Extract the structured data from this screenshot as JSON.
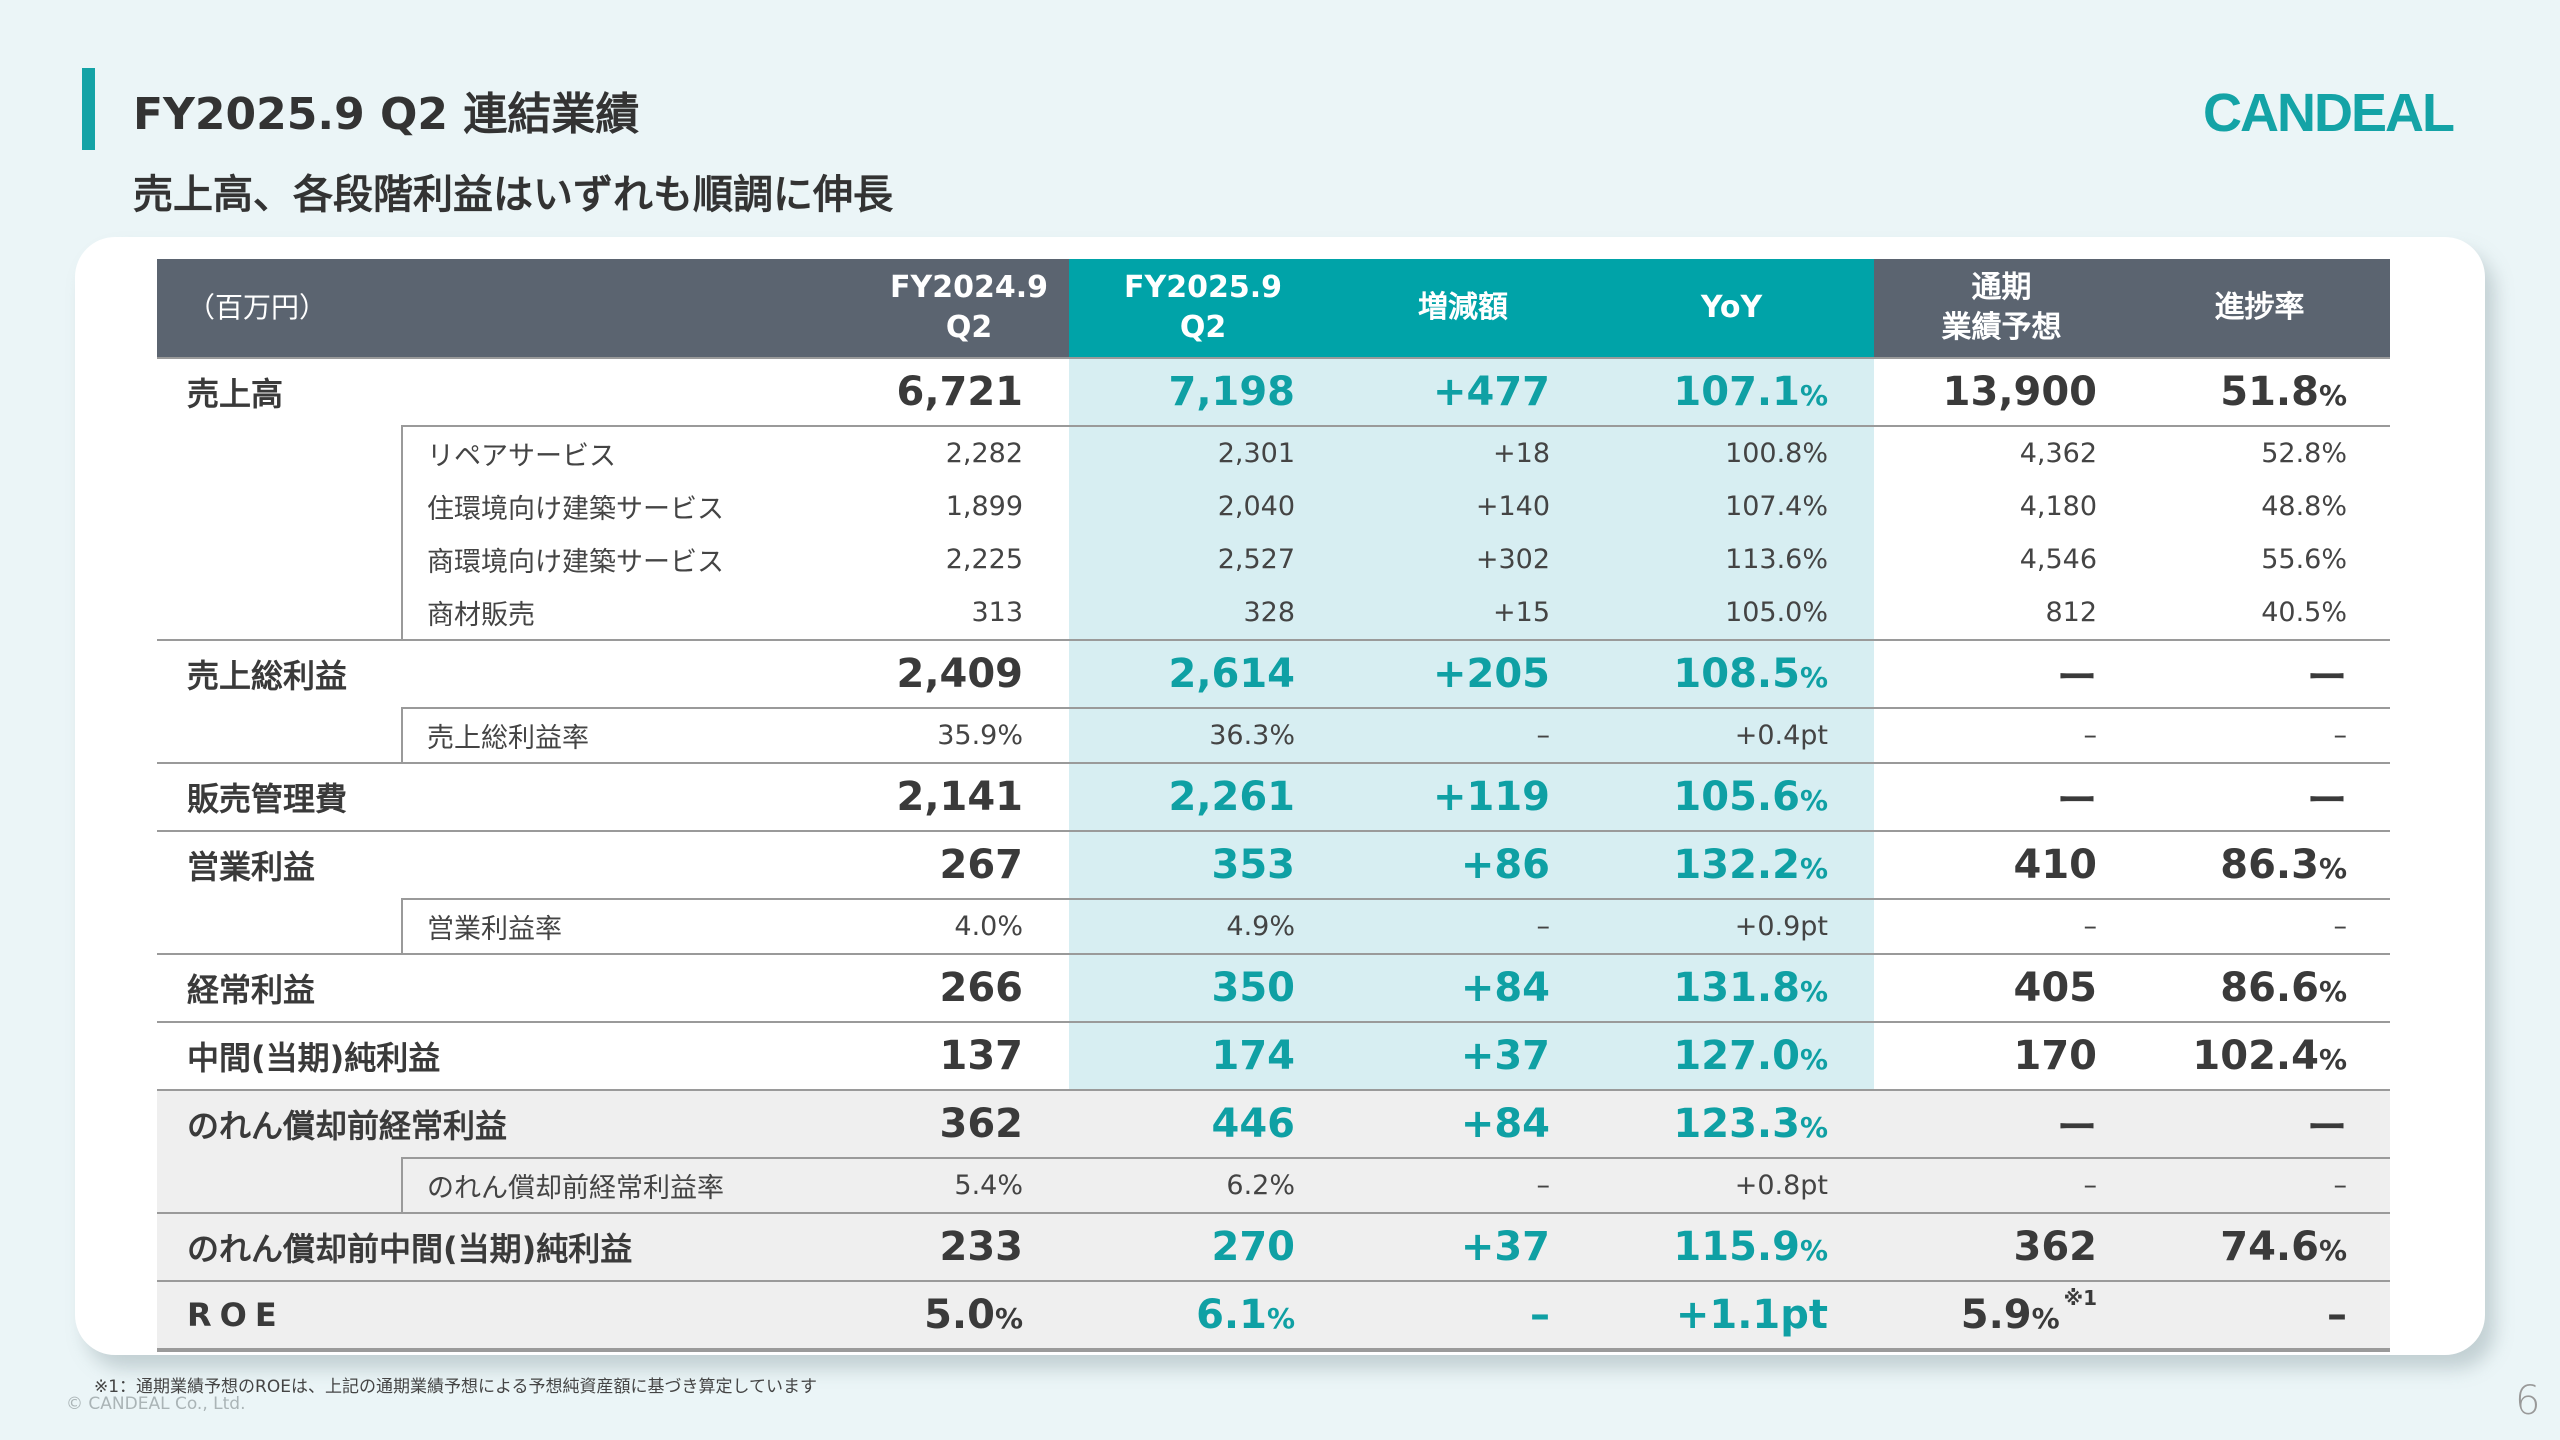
{
  "header": {
    "title": "FY2025.9 Q2 連結業績",
    "subtitle": "売上高、各段階利益はいずれも順調に伸長",
    "logo_text": "CANDEAL"
  },
  "colors": {
    "accent": "#14a3a6",
    "header_gray": "#5b6470",
    "header_teal": "#00a3a8",
    "teal_highlight": "#d7eef2",
    "teal_text": "#0fa0a4"
  },
  "table": {
    "unit_label": "（百万円）",
    "columns": [
      {
        "line1": "FY2024.9",
        "line2": "Q2"
      },
      {
        "line1": "FY2025.9",
        "line2": "Q2"
      },
      {
        "line1": "増減額",
        "line2": ""
      },
      {
        "line1": "YoY",
        "line2": ""
      },
      {
        "line1": "通期",
        "line2": "業績予想"
      },
      {
        "line1": "進捗率",
        "line2": ""
      }
    ],
    "rows": [
      {
        "type": "main",
        "label": "売上高",
        "values": [
          "6,721",
          "7,198",
          "+477",
          "107.1%",
          "13,900",
          "51.8%"
        ]
      },
      {
        "type": "sub",
        "first": true,
        "label": "リペアサービス",
        "values": [
          "2,282",
          "2,301",
          "+18",
          "100.8%",
          "4,362",
          "52.8%"
        ]
      },
      {
        "type": "sub",
        "label": "住環境向け建築サービス",
        "values": [
          "1,899",
          "2,040",
          "+140",
          "107.4%",
          "4,180",
          "48.8%"
        ]
      },
      {
        "type": "sub",
        "label": "商環境向け建築サービス",
        "values": [
          "2,225",
          "2,527",
          "+302",
          "113.6%",
          "4,546",
          "55.6%"
        ]
      },
      {
        "type": "sub",
        "label": "商材販売",
        "values": [
          "313",
          "328",
          "+15",
          "105.0%",
          "812",
          "40.5%"
        ]
      },
      {
        "type": "main",
        "label": "売上総利益",
        "values": [
          "2,409",
          "2,614",
          "+205",
          "108.5%",
          "ー",
          "ー"
        ]
      },
      {
        "type": "sub",
        "first": true,
        "label": "売上総利益率",
        "values": [
          "35.9%",
          "36.3%",
          "–",
          "+0.4pt",
          "–",
          "–"
        ]
      },
      {
        "type": "main",
        "label": "販売管理費",
        "values": [
          "2,141",
          "2,261",
          "+119",
          "105.6%",
          "ー",
          "ー"
        ]
      },
      {
        "type": "main",
        "label": "営業利益",
        "values": [
          "267",
          "353",
          "+86",
          "132.2%",
          "410",
          "86.3%"
        ]
      },
      {
        "type": "sub",
        "first": true,
        "label": "営業利益率",
        "values": [
          "4.0%",
          "4.9%",
          "–",
          "+0.9pt",
          "–",
          "–"
        ]
      },
      {
        "type": "main",
        "label": "経常利益",
        "values": [
          "266",
          "350",
          "+84",
          "131.8%",
          "405",
          "86.6%"
        ]
      },
      {
        "type": "main",
        "label": "中間(当期)純利益",
        "values": [
          "137",
          "174",
          "+37",
          "127.0%",
          "170",
          "102.4%"
        ]
      },
      {
        "type": "main",
        "gray": true,
        "label": "のれん償却前経常利益",
        "values": [
          "362",
          "446",
          "+84",
          "123.3%",
          "ー",
          "ー"
        ]
      },
      {
        "type": "sub",
        "gray": true,
        "first": true,
        "label": "のれん償却前経常利益率",
        "values": [
          "5.4%",
          "6.2%",
          "–",
          "+0.8pt",
          "–",
          "–"
        ]
      },
      {
        "type": "main",
        "gray": true,
        "label": "のれん償却前中間(当期)純利益",
        "values": [
          "233",
          "270",
          "+37",
          "115.9%",
          "362",
          "74.6%"
        ]
      },
      {
        "type": "main",
        "gray": true,
        "roe": true,
        "label": "ROE",
        "values": [
          "5.0%",
          "6.1%",
          "–",
          "+1.1pt",
          "5.9%",
          "–"
        ],
        "forecast_note": "※1"
      }
    ]
  },
  "footer": {
    "footnote": "※1：通期業績予想のROEは、上記の通期業績予想による予想純資産額に基づき算定しています",
    "copyright": "© CANDEAL Co., Ltd.",
    "page_number": "6"
  }
}
